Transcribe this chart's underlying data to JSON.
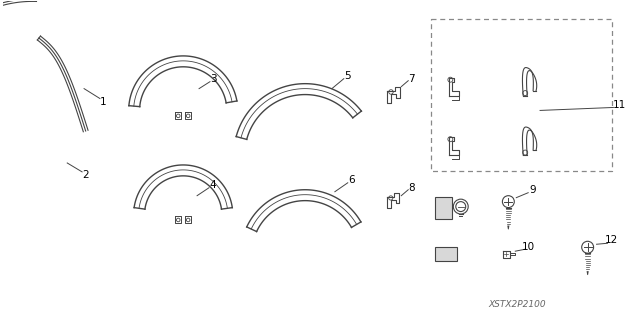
{
  "background_color": "#ffffff",
  "line_color": "#444444",
  "text_color": "#000000",
  "watermark": "XSTX2P2100",
  "fig_width": 6.4,
  "fig_height": 3.19,
  "dpi": 100
}
